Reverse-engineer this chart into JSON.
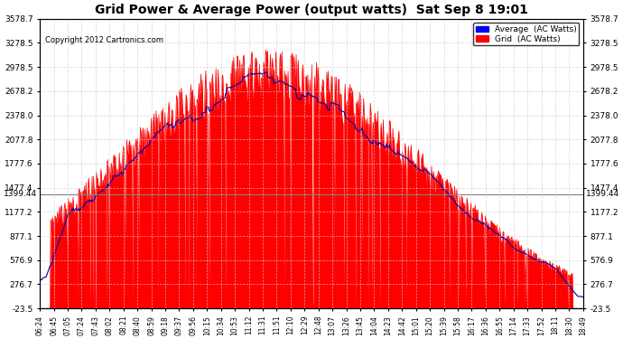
{
  "title": "Grid Power & Average Power (output watts)  Sat Sep 8 19:01",
  "copyright": "Copyright 2012 Cartronics.com",
  "legend_labels": [
    "Average  (AC Watts)",
    "Grid  (AC Watts)"
  ],
  "legend_colors": [
    "blue",
    "red"
  ],
  "yticks": [
    -23.5,
    276.7,
    576.9,
    877.1,
    1177.2,
    1477.4,
    1777.6,
    2077.8,
    2378.0,
    2678.2,
    2978.5,
    3278.5,
    3578.7
  ],
  "yline": 1399.44,
  "yline_label": "1399.44",
  "ylim_min": -23.5,
  "ylim_max": 3578.7,
  "background_color": "#ffffff",
  "plot_bg_color": "#ffffff",
  "grid_color": "#cccccc",
  "fill_color": "#ff0000",
  "line_color": "#ff0000",
  "avg_line_color": "#0000aa",
  "xtick_labels": [
    "06:24",
    "06:45",
    "07:05",
    "07:24",
    "07:43",
    "08:02",
    "08:21",
    "08:40",
    "08:59",
    "09:18",
    "09:37",
    "09:56",
    "10:15",
    "10:34",
    "10:53",
    "11:12",
    "11:31",
    "11:51",
    "12:10",
    "12:29",
    "12:48",
    "13:07",
    "13:26",
    "13:45",
    "14:04",
    "14:23",
    "14:42",
    "15:01",
    "15:20",
    "15:39",
    "15:58",
    "16:17",
    "16:36",
    "16:55",
    "17:14",
    "17:33",
    "17:52",
    "18:11",
    "18:30",
    "18:49"
  ]
}
